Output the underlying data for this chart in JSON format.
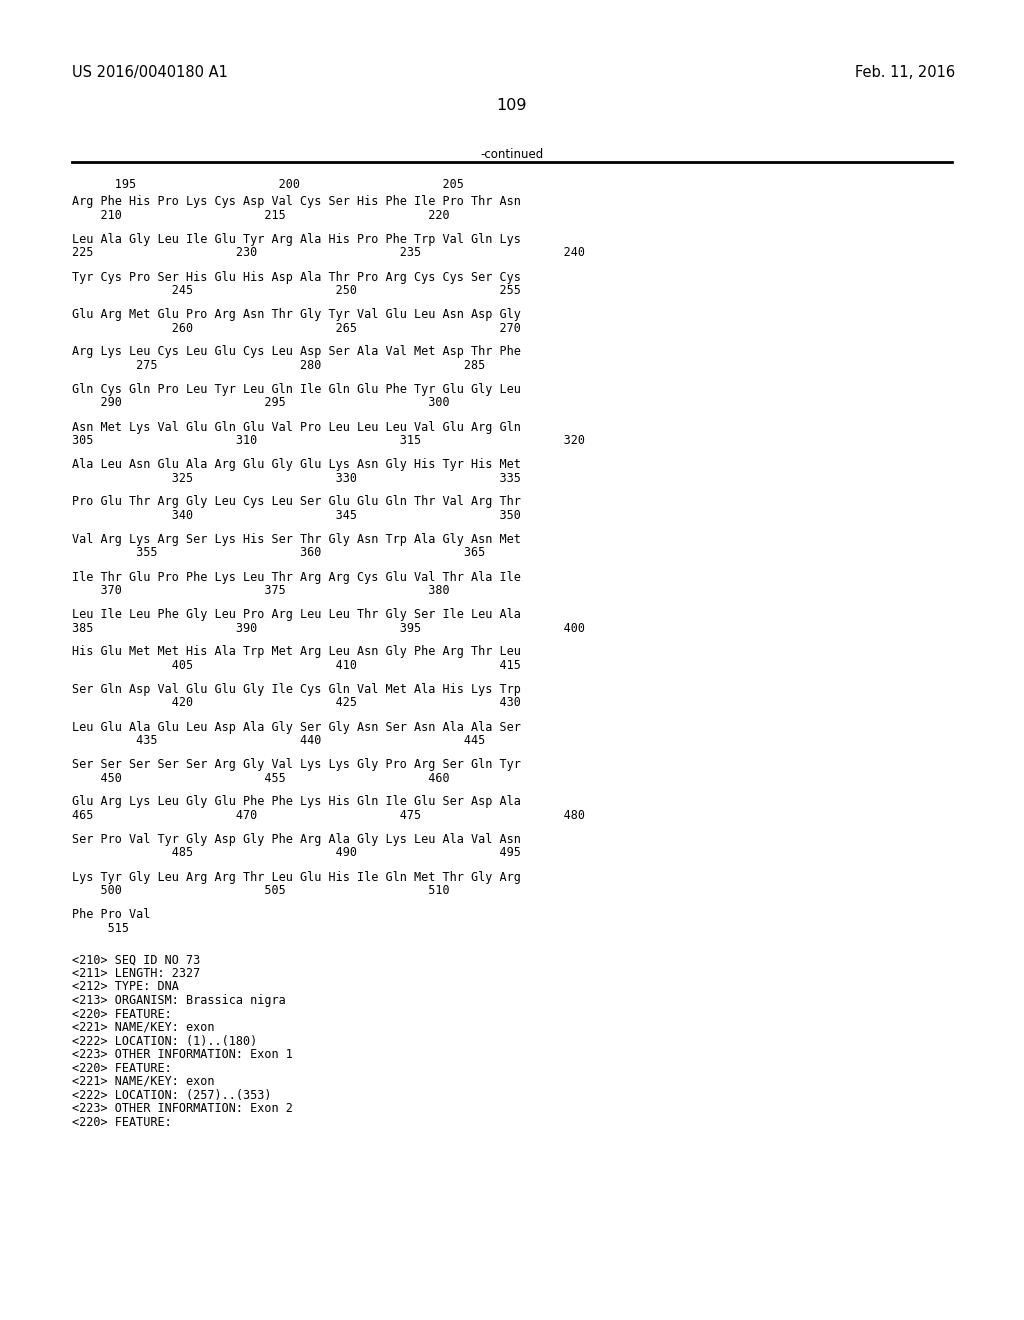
{
  "header_left": "US 2016/0040180 A1",
  "header_right": "Feb. 11, 2016",
  "page_number": "109",
  "continued_label": "-continued",
  "background_color": "#ffffff",
  "text_color": "#000000",
  "font_size": 8.5,
  "header_font_size": 10.5,
  "page_num_font_size": 11.5,
  "blocks_data": [
    [
      "Arg Phe His Pro Lys Cys Asp Val Cys Ser His Phe Ile Pro Thr Asn",
      "    210                    215                    220"
    ],
    [
      "Leu Ala Gly Leu Ile Glu Tyr Arg Ala His Pro Phe Trp Val Gln Lys",
      "225                    230                    235                    240"
    ],
    [
      "Tyr Cys Pro Ser His Glu His Asp Ala Thr Pro Arg Cys Cys Ser Cys",
      "              245                    250                    255"
    ],
    [
      "Glu Arg Met Glu Pro Arg Asn Thr Gly Tyr Val Glu Leu Asn Asp Gly",
      "              260                    265                    270"
    ],
    [
      "Arg Lys Leu Cys Leu Glu Cys Leu Asp Ser Ala Val Met Asp Thr Phe",
      "         275                    280                    285"
    ],
    [
      "Gln Cys Gln Pro Leu Tyr Leu Gln Ile Gln Glu Phe Tyr Glu Gly Leu",
      "    290                    295                    300"
    ],
    [
      "Asn Met Lys Val Glu Gln Glu Val Pro Leu Leu Leu Val Glu Arg Gln",
      "305                    310                    315                    320"
    ],
    [
      "Ala Leu Asn Glu Ala Arg Glu Gly Glu Lys Asn Gly His Tyr His Met",
      "              325                    330                    335"
    ],
    [
      "Pro Glu Thr Arg Gly Leu Cys Leu Ser Glu Glu Gln Thr Val Arg Thr",
      "              340                    345                    350"
    ],
    [
      "Val Arg Lys Arg Ser Lys His Ser Thr Gly Asn Trp Ala Gly Asn Met",
      "         355                    360                    365"
    ],
    [
      "Ile Thr Glu Pro Phe Lys Leu Thr Arg Arg Cys Glu Val Thr Ala Ile",
      "    370                    375                    380"
    ],
    [
      "Leu Ile Leu Phe Gly Leu Pro Arg Leu Leu Thr Gly Ser Ile Leu Ala",
      "385                    390                    395                    400"
    ],
    [
      "His Glu Met Met His Ala Trp Met Arg Leu Asn Gly Phe Arg Thr Leu",
      "              405                    410                    415"
    ],
    [
      "Ser Gln Asp Val Glu Glu Gly Ile Cys Gln Val Met Ala His Lys Trp",
      "              420                    425                    430"
    ],
    [
      "Leu Glu Ala Glu Leu Asp Ala Gly Ser Gly Asn Ser Asn Ala Ala Ser",
      "         435                    440                    445"
    ],
    [
      "Ser Ser Ser Ser Ser Arg Gly Val Lys Lys Gly Pro Arg Ser Gln Tyr",
      "    450                    455                    460"
    ],
    [
      "Glu Arg Lys Leu Gly Glu Phe Phe Lys His Gln Ile Glu Ser Asp Ala",
      "465                    470                    475                    480"
    ],
    [
      "Ser Pro Val Tyr Gly Asp Gly Phe Arg Ala Gly Lys Leu Ala Val Asn",
      "              485                    490                    495"
    ],
    [
      "Lys Tyr Gly Leu Arg Arg Thr Leu Glu His Ile Gln Met Thr Gly Arg",
      "    500                    505                    510"
    ],
    [
      "Phe Pro Val",
      "     515"
    ]
  ],
  "top_numbers": "      195                    200                    205",
  "annotations": [
    "<210> SEQ ID NO 73",
    "<211> LENGTH: 2327",
    "<212> TYPE: DNA",
    "<213> ORGANISM: Brassica nigra",
    "<220> FEATURE:",
    "<221> NAME/KEY: exon",
    "<222> LOCATION: (1)..(180)",
    "<223> OTHER INFORMATION: Exon 1",
    "<220> FEATURE:",
    "<221> NAME/KEY: exon",
    "<222> LOCATION: (257)..(353)",
    "<223> OTHER INFORMATION: Exon 2",
    "<220> FEATURE:"
  ]
}
